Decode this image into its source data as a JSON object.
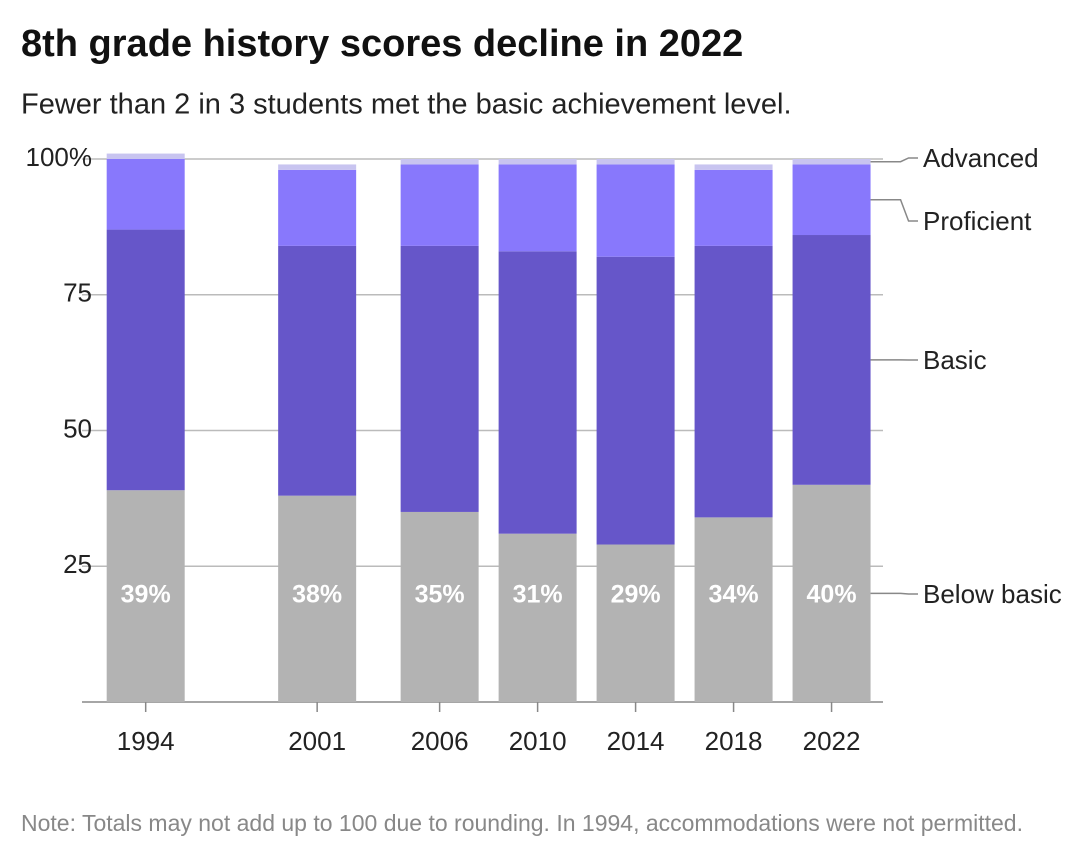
{
  "chart_data": {
    "type": "stacked-bar",
    "title": "8th grade history scores decline in 2022",
    "subtitle": "Fewer than 2 in 3 students met the basic achievement level.",
    "note": "Note: Totals may not add up to 100 due to rounding. In 1994, accommodations were not permitted.",
    "x": [
      1994,
      2001,
      2006,
      2010,
      2014,
      2018,
      2022
    ],
    "xlim": [
      1991.4,
      2024.1
    ],
    "ylim": [
      0,
      100
    ],
    "yticks": [
      25,
      50,
      75,
      {
        "value": 100,
        "label": "100%"
      }
    ],
    "grid": true,
    "series": [
      {
        "name": "Below basic",
        "color": "#b3b3b3",
        "values": [
          39,
          38,
          35,
          31,
          29,
          34,
          40
        ],
        "value_labels": [
          "39%",
          "38%",
          "35%",
          "31%",
          "29%",
          "34%",
          "40%"
        ]
      },
      {
        "name": "Basic",
        "color": "#6656c9",
        "values": [
          48,
          46,
          49,
          52,
          53,
          50,
          46
        ]
      },
      {
        "name": "Proficient",
        "color": "#8878fc",
        "values": [
          13,
          14,
          15,
          16,
          17,
          14,
          13
        ]
      },
      {
        "name": "Advanced",
        "color": "#c8c4f0",
        "values": [
          1,
          1,
          1,
          1,
          1,
          1,
          1
        ]
      }
    ]
  }
}
